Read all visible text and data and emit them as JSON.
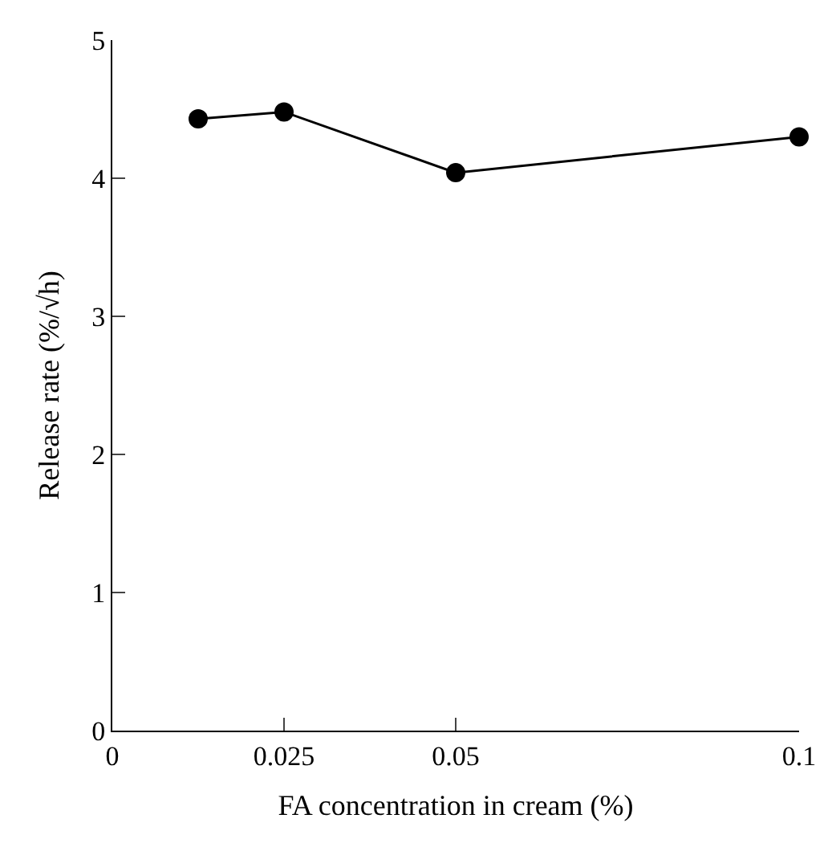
{
  "chart_data": {
    "type": "line",
    "xlabel": "FA concentration in cream (%)",
    "ylabel": "Release rate (%/√h)",
    "x": [
      0.0125,
      0.025,
      0.05,
      0.1
    ],
    "series": [
      {
        "color": "#000000",
        "values": [
          4.43,
          4.48,
          4.04,
          4.3
        ]
      }
    ],
    "xlim": [
      0,
      0.1
    ],
    "xticks": [
      0,
      0.025,
      0.05,
      0.1
    ],
    "ylim": [
      0,
      5
    ],
    "yticks": [
      0,
      1,
      2,
      3,
      4,
      5
    ],
    "marker": "circle",
    "line_style": "solid",
    "legend": false
  }
}
